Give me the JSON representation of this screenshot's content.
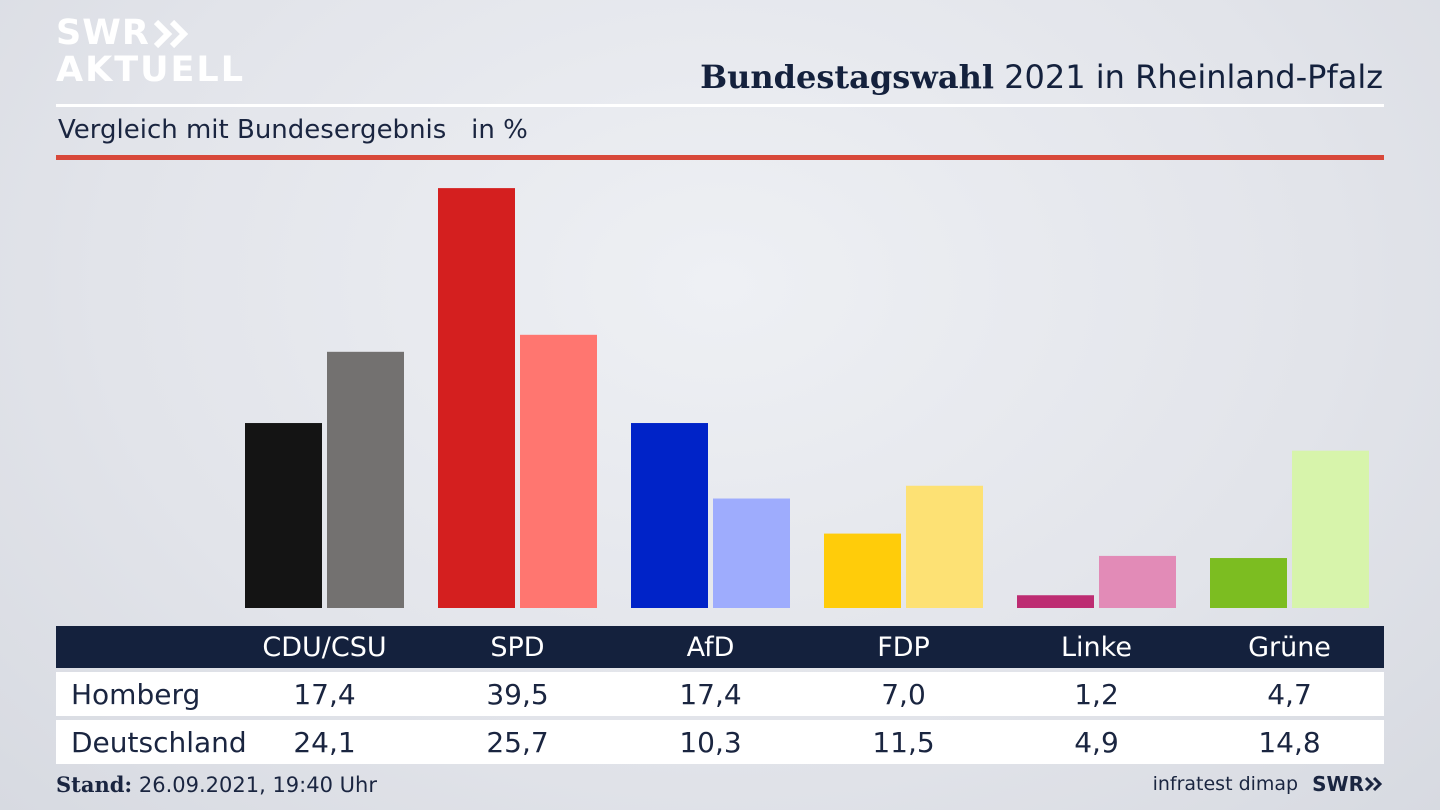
{
  "logo": {
    "line1": "SWR",
    "line2": "AKTUELL"
  },
  "header": {
    "title_bold": "Bundestagswahl",
    "title_rest": " 2021 in Rheinland-Pfalz",
    "subtitle": "Vergleich mit Bundesergebnis   in %"
  },
  "chart_data": {
    "type": "bar",
    "title": "Bundestagswahl 2021 in Rheinland-Pfalz",
    "subtitle": "Vergleich mit Bundesergebnis in %",
    "categories": [
      "CDU/CSU",
      "SPD",
      "AfD",
      "FDP",
      "Linke",
      "Grüne"
    ],
    "series": [
      {
        "name": "Homberg",
        "values": [
          17.4,
          39.5,
          17.4,
          7.0,
          1.2,
          4.7
        ]
      },
      {
        "name": "Deutschland",
        "values": [
          24.1,
          25.7,
          10.3,
          11.5,
          4.9,
          14.8
        ]
      }
    ],
    "colors": {
      "Homberg": [
        "#141414",
        "#d41f1f",
        "#0023c8",
        "#ffcc0a",
        "#bd2c72",
        "#7cbd21"
      ],
      "Deutschland": [
        "#737170",
        "#ff7670",
        "#9eacfd",
        "#fde174",
        "#e28bb7",
        "#d7f4ab"
      ]
    },
    "ylim": [
      0,
      40
    ]
  },
  "table": {
    "headers": [
      "CDU/CSU",
      "SPD",
      "AfD",
      "FDP",
      "Linke",
      "Grüne"
    ],
    "rows": [
      {
        "label": "Homberg",
        "values": [
          "17,4",
          "39,5",
          "17,4",
          "7,0",
          "1,2",
          "4,7"
        ]
      },
      {
        "label": "Deutschland",
        "values": [
          "24,1",
          "25,7",
          "10,3",
          "11,5",
          "4,9",
          "14,8"
        ]
      }
    ]
  },
  "footer": {
    "stand_label": "Stand:",
    "stand_value": " 26.09.2021, 19:40 Uhr",
    "source": "infratest dimap",
    "brand": "SWR"
  }
}
